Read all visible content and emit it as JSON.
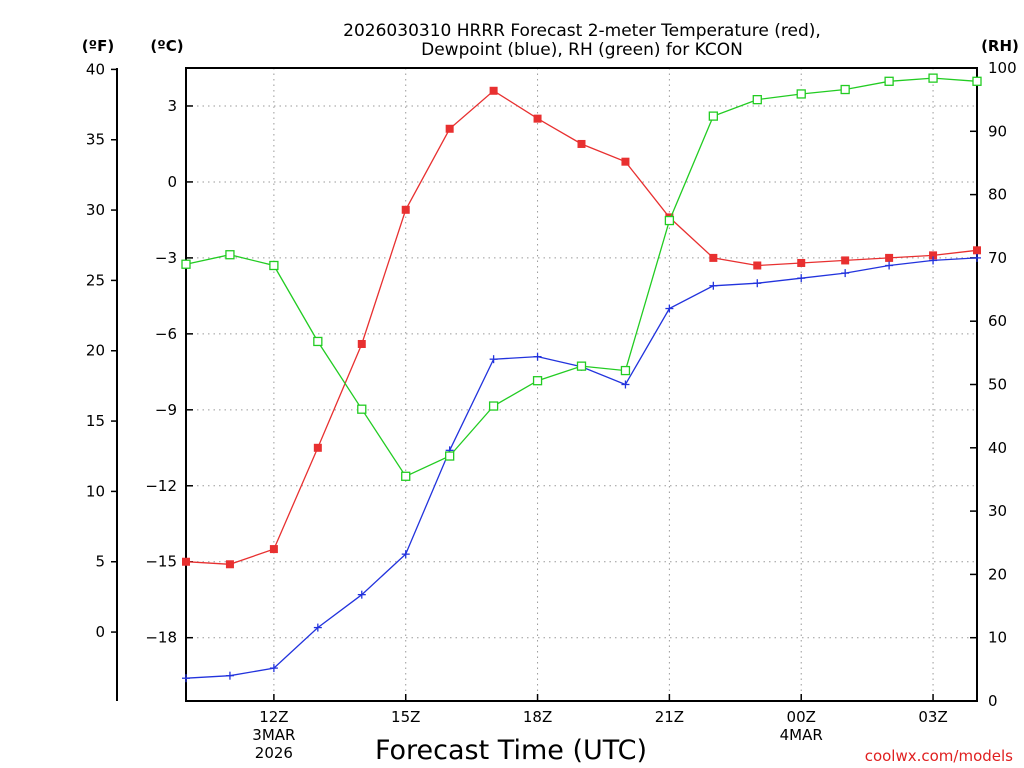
{
  "chart_data": {
    "type": "line",
    "title_lines": [
      "2026030310 HRRR Forecast 2-meter Temperature (red),",
      "Dewpoint (blue), RH (green) for KCON"
    ],
    "unit_labels": {
      "fahrenheit": "(ºF)",
      "celsius": "(ºC)",
      "rh": "(RH)"
    },
    "xlabel": "Forecast Time (UTC)",
    "credit": "coolwx.com/models",
    "x_range_hours": [
      10,
      28
    ],
    "x_ticks": [
      {
        "hour": 12,
        "lines": [
          "12Z",
          "3MAR",
          "2026"
        ]
      },
      {
        "hour": 15,
        "lines": [
          "15Z"
        ]
      },
      {
        "hour": 18,
        "lines": [
          "18Z"
        ]
      },
      {
        "hour": 21,
        "lines": [
          "21Z"
        ]
      },
      {
        "hour": 24,
        "lines": [
          "00Z",
          "4MAR"
        ]
      },
      {
        "hour": 27,
        "lines": [
          "03Z"
        ]
      }
    ],
    "celsius_axis": {
      "range": [
        -20.5,
        4.5
      ],
      "ticks": [
        3,
        0,
        -3,
        -6,
        -9,
        -12,
        -15,
        -18
      ],
      "tick_labels": [
        "3",
        "0",
        "−3",
        "−6",
        "−9",
        "−12",
        "−15",
        "−18"
      ]
    },
    "fahrenheit_axis": {
      "ticks": [
        40,
        35,
        30,
        25,
        20,
        15,
        10,
        5,
        0
      ],
      "tick_labels": [
        "40",
        "35",
        "30",
        "25",
        "20",
        "15",
        "10",
        "5",
        "0"
      ]
    },
    "rh_axis": {
      "range": [
        0,
        100
      ],
      "ticks": [
        100,
        90,
        80,
        70,
        60,
        50,
        40,
        30,
        20,
        10,
        0
      ],
      "tick_labels": [
        "100",
        "90",
        "80",
        "70",
        "60",
        "50",
        "40",
        "30",
        "20",
        "10",
        "0"
      ]
    },
    "hours": [
      10,
      11,
      12,
      13,
      14,
      15,
      16,
      17,
      18,
      19,
      20,
      21,
      22,
      23,
      24,
      25,
      26,
      27,
      28
    ],
    "series": [
      {
        "name": "Temperature",
        "axis": "celsius",
        "color": "#e83030",
        "marker": "filled-square",
        "values": [
          -15.0,
          -15.1,
          -14.5,
          -10.5,
          -6.4,
          -1.1,
          2.1,
          3.6,
          2.5,
          1.5,
          0.8,
          -1.4,
          -3.0,
          -3.3,
          -3.2,
          -3.1,
          -3.0,
          -2.9,
          -2.7
        ]
      },
      {
        "name": "Dewpoint",
        "axis": "celsius",
        "color": "#2233dd",
        "marker": "plus",
        "values": [
          -19.6,
          -19.5,
          -19.2,
          -17.6,
          -16.3,
          -14.7,
          -10.6,
          -7.0,
          -6.9,
          -7.3,
          -8.0,
          -5.0,
          -4.1,
          -4.0,
          -3.8,
          -3.6,
          -3.3,
          -3.1,
          -3.0
        ]
      },
      {
        "name": "RH",
        "axis": "rh",
        "color": "#22cc22",
        "marker": "hollow-square",
        "values": [
          69,
          70.5,
          68.8,
          56.8,
          46.1,
          35.5,
          38.7,
          46.6,
          50.6,
          52.9,
          52.2,
          75.9,
          92.4,
          95.0,
          95.9,
          96.6,
          97.9,
          98.4,
          97.9
        ]
      }
    ]
  }
}
